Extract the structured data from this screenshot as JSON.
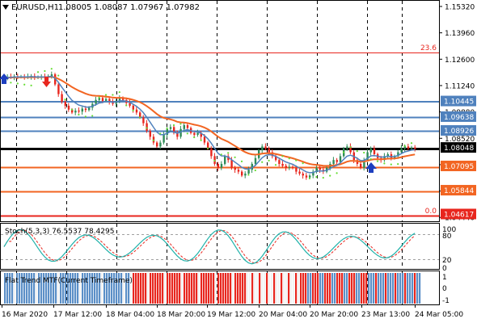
{
  "header": {
    "symbol_tf": "EURUSD,H1",
    "ohlc": "1.08005 1.08087 1.07967 1.07982"
  },
  "price_scale": [
    "1.15320",
    "1.13960",
    "1.12600",
    "1.11240",
    "1.09880",
    "1.08520",
    "1.07160",
    "1.05800",
    "1.04440"
  ],
  "price_tags": [
    {
      "text": "1.10445",
      "bg": "#4f81bd",
      "fg": "#ffffff"
    },
    {
      "text": "1.09638",
      "bg": "#4f81bd",
      "fg": "#ffffff"
    },
    {
      "text": "1.08926",
      "bg": "#4f81bd",
      "fg": "#ffffff"
    },
    {
      "text": "1.08048",
      "bg": "#000000",
      "fg": "#ffffff"
    },
    {
      "text": "1.07095",
      "bg": "#f26522",
      "fg": "#ffffff"
    },
    {
      "text": "1.05844",
      "bg": "#f26522",
      "fg": "#ffffff"
    },
    {
      "text": "1.04617",
      "bg": "#e8261e",
      "fg": "#ffffff"
    }
  ],
  "fibo": {
    "top": "23.6",
    "bottom": "0.0"
  },
  "stoch": {
    "label": "Stoch(5,3,3) 76.5537 78.4295",
    "levels": [
      "100",
      "80",
      "20",
      "0"
    ]
  },
  "flat_trend": {
    "label": "Flat Trend MTF(Current Timeframe)",
    "levels": [
      "1",
      "0",
      "-1"
    ]
  },
  "time_axis": [
    "16 Mar 2020",
    "17 Mar 12:00",
    "18 Mar 04:00",
    "18 Mar 20:00",
    "19 Mar 12:00",
    "20 Mar 04:00",
    "20 Mar 20:00",
    "23 Mar 13:00",
    "24 Mar 05:00"
  ],
  "colors": {
    "bull": "#2e8b57",
    "bear": "#e8261e",
    "ma_slow": "#f26522",
    "ma_fast": "#4f81bd",
    "sar": "#66dd33",
    "stoch_main": "#20b2aa",
    "stoch_signal": "#e8261e",
    "hist_red": "#e8261e",
    "hist_blue": "#5b8fc7",
    "hist_white": "#f2f2f2"
  },
  "chart_data": {
    "type": "candlestick",
    "title": "EURUSD,H1",
    "ylim": [
      1.0445,
      1.1532
    ],
    "close_series": [
      1.1165,
      1.117,
      1.1168,
      1.1172,
      1.1169,
      1.1171,
      1.1168,
      1.117,
      1.1173,
      1.1165,
      1.1168,
      1.117,
      1.1166,
      1.1172,
      1.1182,
      1.113,
      1.108,
      1.104,
      1.102,
      1.1,
      1.0985,
      1.0995,
      1.099,
      1.1005,
      1.0998,
      1.101,
      1.103,
      1.105,
      1.106,
      1.1045,
      1.1055,
      1.104,
      1.103,
      1.1045,
      1.106,
      1.105,
      1.1035,
      1.102,
      1.1,
      1.0985,
      1.096,
      1.093,
      1.089,
      1.086,
      1.083,
      1.081,
      1.083,
      1.087,
      1.09,
      1.091,
      1.088,
      1.086,
      1.09,
      1.092,
      1.0905,
      1.088,
      1.087,
      1.088,
      1.086,
      1.083,
      1.08,
      1.076,
      1.072,
      1.07,
      1.072,
      1.076,
      1.074,
      1.07,
      1.069,
      1.068,
      1.066,
      1.067,
      1.069,
      1.072,
      1.075,
      1.079,
      1.081,
      1.08,
      1.078,
      1.076,
      1.074,
      1.072,
      1.071,
      1.07,
      1.0705,
      1.07,
      1.068,
      1.067,
      1.066,
      1.065,
      1.066,
      1.068,
      1.07,
      1.069,
      1.068,
      1.07,
      1.072,
      1.074,
      1.073,
      1.076,
      1.08,
      1.081,
      1.078,
      1.074,
      1.072,
      1.07,
      1.074,
      1.078,
      1.08,
      1.077,
      1.075,
      1.074,
      1.076,
      1.077,
      1.075,
      1.076,
      1.078,
      1.08,
      1.081,
      1.08,
      1.0805,
      1.0798
    ]
  }
}
